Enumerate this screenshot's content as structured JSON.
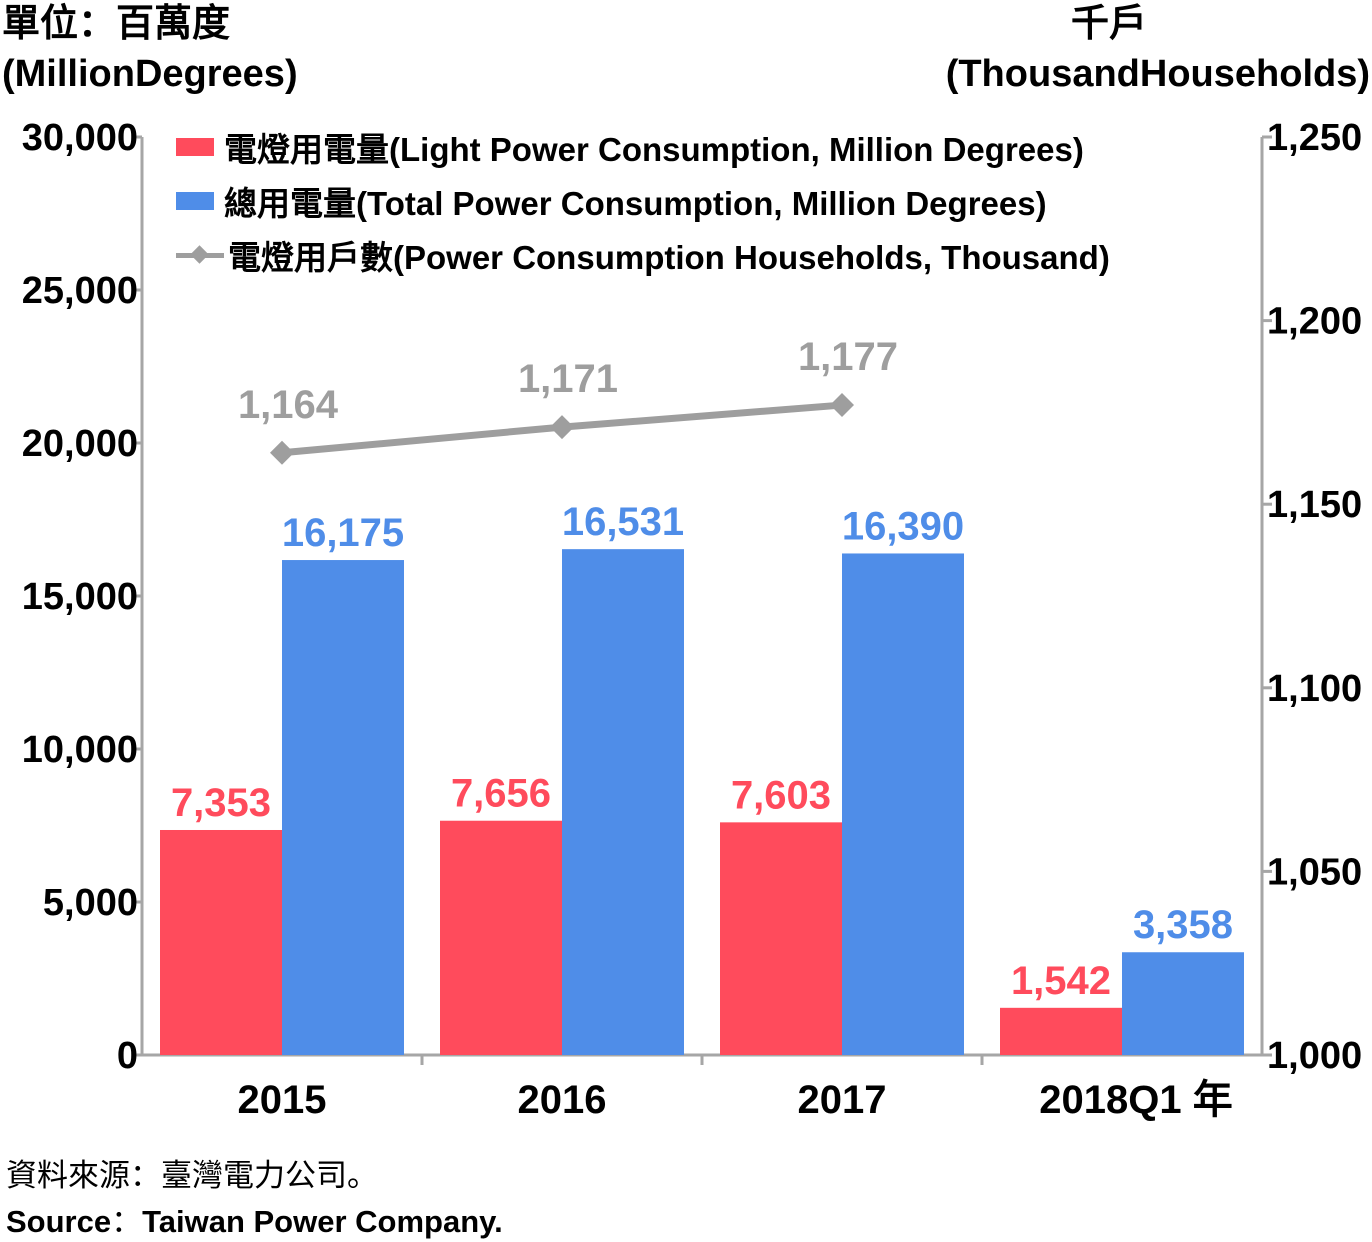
{
  "header": {
    "left_unit_zh": "單位：百萬度",
    "left_unit_en": "(MillionDegrees)",
    "right_unit_zh": "千戶",
    "right_unit_en": "(ThousandHouseholds)"
  },
  "footer": {
    "source_zh": "資料來源：臺灣電力公司。",
    "source_en_label": "Source",
    "source_en_sep": "：",
    "source_en_text": "Taiwan Power Company."
  },
  "chart_data": {
    "type": "bar",
    "categories": [
      "2015",
      "2016",
      "2017",
      "2018Q1"
    ],
    "x_unit_suffix": "年",
    "series": [
      {
        "name": "電燈用電量(Light Power Consumption, Million Degrees)",
        "type": "bar",
        "axis": "left",
        "color": "#ff4b5c",
        "values": [
          7353,
          7656,
          7603,
          1542
        ]
      },
      {
        "name": "總用電量(Total Power Consumption, Million Degrees)",
        "type": "bar",
        "axis": "left",
        "color": "#4f8de8",
        "values": [
          16175,
          16531,
          16390,
          3358
        ]
      },
      {
        "name": "電燈用戶數(Power Consumption Households, Thousand)",
        "type": "line",
        "axis": "right",
        "color": "#9e9e9e",
        "values": [
          1164,
          1171,
          1177,
          null
        ]
      }
    ],
    "left_axis": {
      "min": 0,
      "max": 30000,
      "ticks": [
        0,
        5000,
        10000,
        15000,
        20000,
        25000,
        30000
      ]
    },
    "right_axis": {
      "min": 1000,
      "max": 1250,
      "ticks": [
        1000,
        1050,
        1100,
        1150,
        1200,
        1250
      ]
    },
    "grid": false,
    "legend_position": "top-left"
  }
}
